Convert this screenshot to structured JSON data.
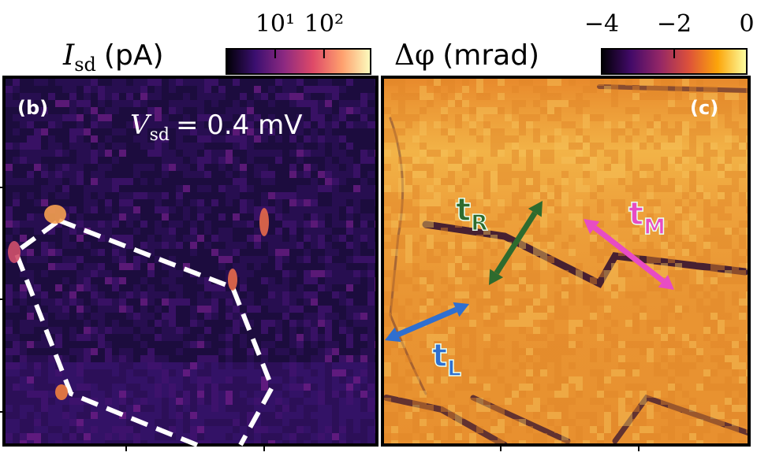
{
  "panels": [
    {
      "label": "(b)",
      "quantity": "I",
      "quantity_sub": "sd",
      "unit": "(pA)",
      "annotation": {
        "symbol": "V",
        "sub": "sd",
        "text": "= 0.4 mV"
      },
      "colorbar": {
        "log": true,
        "clim": [
          1,
          900
        ],
        "colors": [
          "#000004",
          "#3b0f70",
          "#8c2981",
          "#de4968",
          "#fe9f6d",
          "#fcfdbf"
        ],
        "ticks": [
          {
            "value": 10,
            "label": "10¹"
          },
          {
            "value": 100,
            "label": "10²"
          }
        ]
      }
    },
    {
      "label": "(c)",
      "quantity": "Δφ",
      "unit": "(mrad)",
      "colorbar": {
        "log": false,
        "clim": [
          -4,
          0
        ],
        "colors": [
          "#000004",
          "#420a68",
          "#932667",
          "#dd513a",
          "#fca50a",
          "#fcffa4"
        ],
        "ticks": [
          {
            "value": -4,
            "label": "−4"
          },
          {
            "value": -2,
            "label": "−2"
          },
          {
            "value": 0,
            "label": "0"
          }
        ]
      },
      "arrows": [
        {
          "base": "t",
          "sub": "R",
          "color": "#2e6b2e"
        },
        {
          "base": "t",
          "sub": "M",
          "color": "#e84cc4"
        },
        {
          "base": "t",
          "sub": "L",
          "color": "#2f6fd0"
        }
      ]
    }
  ]
}
